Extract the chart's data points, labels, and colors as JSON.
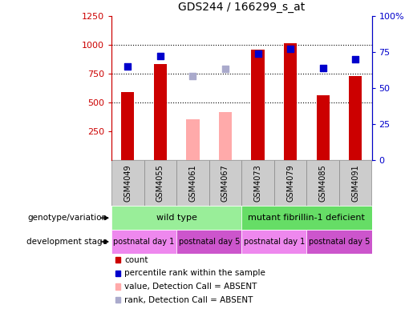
{
  "title": "GDS244 / 166299_s_at",
  "samples": [
    "GSM4049",
    "GSM4055",
    "GSM4061",
    "GSM4067",
    "GSM4073",
    "GSM4079",
    "GSM4085",
    "GSM4091"
  ],
  "count_values": [
    590,
    830,
    null,
    null,
    960,
    1010,
    565,
    730
  ],
  "count_absent_values": [
    null,
    null,
    355,
    415,
    null,
    null,
    null,
    null
  ],
  "rank_values": [
    65,
    72,
    null,
    null,
    74,
    77,
    64,
    70
  ],
  "rank_absent_values": [
    null,
    null,
    58,
    63,
    null,
    null,
    null,
    null
  ],
  "count_color": "#cc0000",
  "count_absent_color": "#ffaaaa",
  "rank_color": "#0000cc",
  "rank_absent_color": "#aaaacc",
  "ylim_left": [
    0,
    1250
  ],
  "ylim_right": [
    0,
    100
  ],
  "yticks_left": [
    250,
    500,
    750,
    1000,
    1250
  ],
  "yticks_right": [
    0,
    25,
    50,
    75,
    100
  ],
  "ytick_labels_left": [
    "250",
    "500",
    "750",
    "1000",
    "1250"
  ],
  "ytick_labels_right": [
    "0",
    "25",
    "50",
    "75",
    "100%"
  ],
  "geno_groups": [
    {
      "label": "wild type",
      "start": 0,
      "end": 4,
      "color": "#99ee99"
    },
    {
      "label": "mutant fibrillin-1 deficient",
      "start": 4,
      "end": 8,
      "color": "#66dd66"
    }
  ],
  "dev_groups": [
    {
      "label": "postnatal day 1",
      "start": 0,
      "end": 2,
      "color": "#ee88ee"
    },
    {
      "label": "postnatal day 5",
      "start": 2,
      "end": 4,
      "color": "#cc55cc"
    },
    {
      "label": "postnatal day 1",
      "start": 4,
      "end": 6,
      "color": "#ee88ee"
    },
    {
      "label": "postnatal day 5",
      "start": 6,
      "end": 8,
      "color": "#cc55cc"
    }
  ],
  "legend_items": [
    {
      "label": "count",
      "color": "#cc0000"
    },
    {
      "label": "percentile rank within the sample",
      "color": "#0000cc"
    },
    {
      "label": "value, Detection Call = ABSENT",
      "color": "#ffaaaa"
    },
    {
      "label": "rank, Detection Call = ABSENT",
      "color": "#aaaacc"
    }
  ],
  "bar_width": 0.4,
  "dot_size": 40,
  "left_axis_color": "#cc0000",
  "right_axis_color": "#0000cc",
  "grid_dotted_ticks": [
    500,
    750,
    1000
  ],
  "sample_box_color": "#cccccc",
  "sample_box_edge": "#888888"
}
